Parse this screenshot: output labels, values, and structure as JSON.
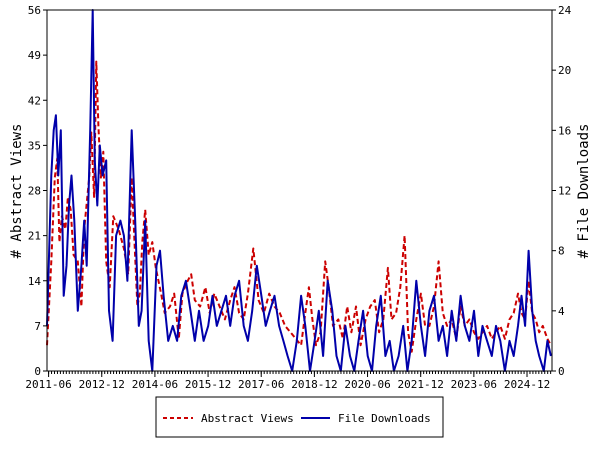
{
  "chart_data": {
    "type": "line",
    "title": "",
    "ylabel_left": "# Abstract Views",
    "ylabel_right": "# File Downloads",
    "xlabel": "",
    "x_range": [
      2011.33,
      2025.58
    ],
    "x_tick_labels": [
      "2011-06",
      "2012-12",
      "2014-06",
      "2015-12",
      "2017-06",
      "2018-12",
      "2020-06",
      "2021-12",
      "2023-06",
      "2024-12"
    ],
    "x_tick_positions": [
      2011.375,
      2012.875,
      2014.375,
      2015.875,
      2017.375,
      2018.875,
      2020.375,
      2021.875,
      2023.375,
      2024.875
    ],
    "y_left": {
      "min": 0,
      "max": 56,
      "ticks": [
        0,
        7,
        14,
        21,
        28,
        35,
        42,
        49,
        56
      ]
    },
    "y_right": {
      "min": 0,
      "max": 24,
      "ticks": [
        0,
        4,
        8,
        12,
        16,
        20,
        24
      ]
    },
    "grid": false,
    "legend_position": "bottom-center",
    "series": [
      {
        "name": "Abstract Views",
        "axis": "left",
        "color": "#cc0000",
        "style": "dashed",
        "anchors": [
          [
            2011.33,
            4
          ],
          [
            2011.45,
            17
          ],
          [
            2011.55,
            30
          ],
          [
            2011.62,
            33
          ],
          [
            2011.68,
            20
          ],
          [
            2011.75,
            24
          ],
          [
            2011.85,
            22
          ],
          [
            2011.92,
            27
          ],
          [
            2012.0,
            25
          ],
          [
            2012.08,
            18
          ],
          [
            2012.2,
            17
          ],
          [
            2012.3,
            10
          ],
          [
            2012.38,
            22
          ],
          [
            2012.45,
            26
          ],
          [
            2012.52,
            30
          ],
          [
            2012.58,
            37
          ],
          [
            2012.66,
            27
          ],
          [
            2012.72,
            48
          ],
          [
            2012.78,
            38
          ],
          [
            2012.85,
            30
          ],
          [
            2012.92,
            34
          ],
          [
            2013.0,
            17
          ],
          [
            2013.1,
            13
          ],
          [
            2013.2,
            24
          ],
          [
            2013.35,
            22
          ],
          [
            2013.5,
            19
          ],
          [
            2013.62,
            15
          ],
          [
            2013.72,
            30
          ],
          [
            2013.8,
            20
          ],
          [
            2013.88,
            10
          ],
          [
            2013.95,
            12
          ],
          [
            2014.02,
            20
          ],
          [
            2014.1,
            25
          ],
          [
            2014.2,
            18
          ],
          [
            2014.3,
            20
          ],
          [
            2014.4,
            16
          ],
          [
            2014.55,
            12
          ],
          [
            2014.65,
            9
          ],
          [
            2014.8,
            10
          ],
          [
            2014.92,
            12
          ],
          [
            2015.05,
            5
          ],
          [
            2015.15,
            12
          ],
          [
            2015.3,
            14
          ],
          [
            2015.4,
            15
          ],
          [
            2015.5,
            11
          ],
          [
            2015.65,
            10
          ],
          [
            2015.8,
            13
          ],
          [
            2015.92,
            9
          ],
          [
            2016.05,
            12
          ],
          [
            2016.2,
            10
          ],
          [
            2016.35,
            8
          ],
          [
            2016.5,
            11
          ],
          [
            2016.62,
            13
          ],
          [
            2016.75,
            9
          ],
          [
            2016.88,
            8
          ],
          [
            2017.0,
            12
          ],
          [
            2017.15,
            19
          ],
          [
            2017.3,
            11
          ],
          [
            2017.45,
            9
          ],
          [
            2017.6,
            12
          ],
          [
            2017.75,
            10
          ],
          [
            2017.9,
            9
          ],
          [
            2018.05,
            7
          ],
          [
            2018.2,
            6
          ],
          [
            2018.35,
            5
          ],
          [
            2018.5,
            4
          ],
          [
            2018.62,
            9
          ],
          [
            2018.72,
            13
          ],
          [
            2018.82,
            8
          ],
          [
            2018.92,
            4
          ],
          [
            2019.05,
            6
          ],
          [
            2019.18,
            17
          ],
          [
            2019.28,
            13
          ],
          [
            2019.4,
            7
          ],
          [
            2019.55,
            8
          ],
          [
            2019.68,
            5
          ],
          [
            2019.8,
            10
          ],
          [
            2019.92,
            6
          ],
          [
            2020.05,
            10
          ],
          [
            2020.18,
            4
          ],
          [
            2020.32,
            8
          ],
          [
            2020.45,
            10
          ],
          [
            2020.58,
            11
          ],
          [
            2020.7,
            6
          ],
          [
            2020.82,
            8
          ],
          [
            2020.95,
            16
          ],
          [
            2021.05,
            8
          ],
          [
            2021.18,
            9
          ],
          [
            2021.3,
            13
          ],
          [
            2021.42,
            21
          ],
          [
            2021.52,
            6
          ],
          [
            2021.62,
            3
          ],
          [
            2021.75,
            8
          ],
          [
            2021.88,
            12
          ],
          [
            2022.0,
            7
          ],
          [
            2022.12,
            7
          ],
          [
            2022.25,
            10
          ],
          [
            2022.38,
            17
          ],
          [
            2022.5,
            9
          ],
          [
            2022.62,
            7
          ],
          [
            2022.75,
            8
          ],
          [
            2022.88,
            5
          ],
          [
            2023.0,
            10
          ],
          [
            2023.12,
            7
          ],
          [
            2023.25,
            8
          ],
          [
            2023.38,
            6
          ],
          [
            2023.5,
            5
          ],
          [
            2023.62,
            6
          ],
          [
            2023.75,
            7
          ],
          [
            2023.88,
            5
          ],
          [
            2024.0,
            6
          ],
          [
            2024.12,
            7
          ],
          [
            2024.25,
            5
          ],
          [
            2024.38,
            8
          ],
          [
            2024.5,
            9
          ],
          [
            2024.62,
            12
          ],
          [
            2024.72,
            9
          ],
          [
            2024.82,
            8
          ],
          [
            2024.92,
            14
          ],
          [
            2025.02,
            9
          ],
          [
            2025.12,
            8
          ],
          [
            2025.22,
            6
          ],
          [
            2025.32,
            7
          ],
          [
            2025.45,
            5
          ],
          [
            2025.55,
            4
          ]
        ]
      },
      {
        "name": "File Downloads",
        "axis": "right",
        "color": "#0000aa",
        "style": "solid",
        "anchors": [
          [
            2011.33,
            3
          ],
          [
            2011.45,
            13
          ],
          [
            2011.52,
            16
          ],
          [
            2011.58,
            17
          ],
          [
            2011.65,
            13
          ],
          [
            2011.72,
            16
          ],
          [
            2011.8,
            5
          ],
          [
            2011.88,
            7
          ],
          [
            2011.95,
            11
          ],
          [
            2012.02,
            13
          ],
          [
            2012.1,
            10
          ],
          [
            2012.2,
            4
          ],
          [
            2012.3,
            7
          ],
          [
            2012.38,
            10
          ],
          [
            2012.45,
            7
          ],
          [
            2012.55,
            16
          ],
          [
            2012.62,
            24
          ],
          [
            2012.68,
            14
          ],
          [
            2012.75,
            11
          ],
          [
            2012.82,
            15
          ],
          [
            2012.9,
            13
          ],
          [
            2013.0,
            14
          ],
          [
            2013.08,
            4
          ],
          [
            2013.18,
            2
          ],
          [
            2013.28,
            9
          ],
          [
            2013.4,
            10
          ],
          [
            2013.5,
            9
          ],
          [
            2013.6,
            6
          ],
          [
            2013.72,
            16
          ],
          [
            2013.82,
            10
          ],
          [
            2013.92,
            3
          ],
          [
            2014.0,
            4
          ],
          [
            2014.1,
            10
          ],
          [
            2014.2,
            2
          ],
          [
            2014.3,
            0
          ],
          [
            2014.42,
            7
          ],
          [
            2014.52,
            8
          ],
          [
            2014.62,
            5
          ],
          [
            2014.75,
            2
          ],
          [
            2014.88,
            3
          ],
          [
            2015.0,
            2
          ],
          [
            2015.12,
            5
          ],
          [
            2015.25,
            6
          ],
          [
            2015.38,
            4
          ],
          [
            2015.5,
            2
          ],
          [
            2015.62,
            4
          ],
          [
            2015.75,
            2
          ],
          [
            2015.88,
            3
          ],
          [
            2016.0,
            5
          ],
          [
            2016.12,
            3
          ],
          [
            2016.25,
            4
          ],
          [
            2016.38,
            5
          ],
          [
            2016.5,
            3
          ],
          [
            2016.62,
            5
          ],
          [
            2016.75,
            6
          ],
          [
            2016.88,
            3
          ],
          [
            2017.0,
            2
          ],
          [
            2017.12,
            4
          ],
          [
            2017.25,
            7
          ],
          [
            2017.38,
            5
          ],
          [
            2017.5,
            3
          ],
          [
            2017.62,
            4
          ],
          [
            2017.75,
            5
          ],
          [
            2017.88,
            3
          ],
          [
            2018.0,
            2
          ],
          [
            2018.12,
            1
          ],
          [
            2018.25,
            0
          ],
          [
            2018.38,
            2
          ],
          [
            2018.5,
            5
          ],
          [
            2018.62,
            3
          ],
          [
            2018.75,
            0
          ],
          [
            2018.88,
            2
          ],
          [
            2019.0,
            4
          ],
          [
            2019.12,
            1
          ],
          [
            2019.25,
            6
          ],
          [
            2019.38,
            4
          ],
          [
            2019.5,
            1
          ],
          [
            2019.62,
            0
          ],
          [
            2019.75,
            3
          ],
          [
            2019.88,
            1
          ],
          [
            2020.0,
            0
          ],
          [
            2020.12,
            2
          ],
          [
            2020.25,
            4
          ],
          [
            2020.38,
            1
          ],
          [
            2020.5,
            0
          ],
          [
            2020.62,
            3
          ],
          [
            2020.75,
            5
          ],
          [
            2020.88,
            1
          ],
          [
            2021.0,
            2
          ],
          [
            2021.12,
            0
          ],
          [
            2021.25,
            1
          ],
          [
            2021.38,
            3
          ],
          [
            2021.5,
            0
          ],
          [
            2021.62,
            2
          ],
          [
            2021.75,
            6
          ],
          [
            2021.88,
            3
          ],
          [
            2022.0,
            1
          ],
          [
            2022.12,
            4
          ],
          [
            2022.25,
            5
          ],
          [
            2022.38,
            2
          ],
          [
            2022.5,
            3
          ],
          [
            2022.62,
            1
          ],
          [
            2022.75,
            4
          ],
          [
            2022.88,
            2
          ],
          [
            2023.0,
            5
          ],
          [
            2023.12,
            3
          ],
          [
            2023.25,
            2
          ],
          [
            2023.38,
            4
          ],
          [
            2023.5,
            1
          ],
          [
            2023.62,
            3
          ],
          [
            2023.75,
            2
          ],
          [
            2023.88,
            1
          ],
          [
            2024.0,
            3
          ],
          [
            2024.12,
            2
          ],
          [
            2024.25,
            0
          ],
          [
            2024.38,
            2
          ],
          [
            2024.5,
            1
          ],
          [
            2024.62,
            3
          ],
          [
            2024.72,
            5
          ],
          [
            2024.82,
            3
          ],
          [
            2024.92,
            8
          ],
          [
            2025.02,
            4
          ],
          [
            2025.12,
            2
          ],
          [
            2025.22,
            1
          ],
          [
            2025.35,
            0
          ],
          [
            2025.45,
            2
          ],
          [
            2025.55,
            1
          ]
        ]
      }
    ]
  }
}
